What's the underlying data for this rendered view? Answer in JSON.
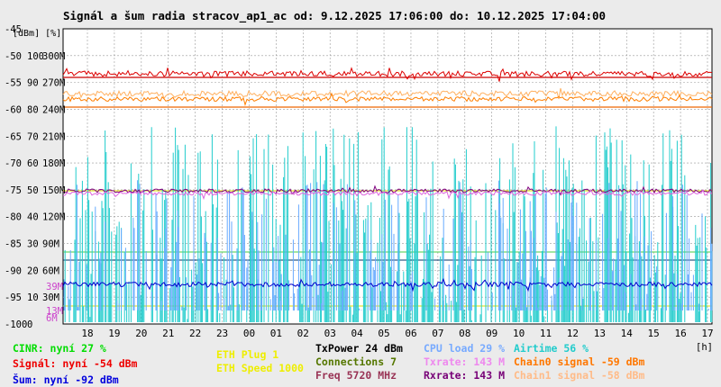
{
  "title": "Signál a šum radia stracov_ap1_ac od: 9.12.2025 17:06:00 do: 10.12.2025 17:04:00",
  "chart_data": {
    "type": "line",
    "axes": {
      "left_units_label": "[dBm] [%]",
      "dbm_ticks": [
        "-45",
        "-50",
        "-55",
        "-60",
        "-65",
        "-70",
        "-75",
        "-80",
        "-85",
        "-90",
        "-95",
        "-100"
      ],
      "percent_ticks": [
        "100",
        "90",
        "80",
        "70",
        "60",
        "50",
        "40",
        "30",
        "20",
        "10",
        "0"
      ],
      "rate_ticks": [
        "300M",
        "270M",
        "240M",
        "210M",
        "180M",
        "150M",
        "120M",
        "90M",
        "60M",
        "30M"
      ],
      "dbm_range": [
        -100,
        -45
      ],
      "percent_range": [
        0,
        110
      ],
      "extra_labels": [
        {
          "text": "39M",
          "color": "#cc44cc"
        },
        {
          "text": "13M",
          "color": "#cc44cc"
        },
        {
          "text": "6M",
          "color": "#cc44cc"
        }
      ],
      "x_ticks": [
        "18",
        "19",
        "20",
        "21",
        "22",
        "23",
        "00",
        "01",
        "02",
        "03",
        "04",
        "05",
        "06",
        "07",
        "08",
        "09",
        "10",
        "11",
        "12",
        "13",
        "14",
        "15",
        "16",
        "17"
      ],
      "x_unit": "[h]",
      "grid": true
    },
    "series": [
      {
        "name": "Signál",
        "color": "#dd0000",
        "unit": "dBm",
        "approx_level": -54
      },
      {
        "name": "Chain0 signal",
        "color": "#ff7f00",
        "unit": "dBm",
        "approx_level": -59
      },
      {
        "name": "Chain1 signal",
        "color": "#ffb060",
        "unit": "dBm",
        "approx_level": -58
      },
      {
        "name": "Rxrate",
        "color": "#800080",
        "unit": "Mbps",
        "approx_level": 143
      },
      {
        "name": "Txrate",
        "color": "#dd66dd",
        "unit": "Mbps",
        "approx_level": 143
      },
      {
        "name": "Šum",
        "color": "#0000cc",
        "unit": "dBm",
        "approx_level": -92
      },
      {
        "name": "CPU load",
        "color": "#66aaff",
        "unit": "%",
        "approx_level": 29
      },
      {
        "name": "Airtime",
        "color": "#22cccc",
        "unit": "%",
        "approx_level": 56
      },
      {
        "name": "CINR",
        "color": "#00cc00",
        "unit": "dB",
        "approx_level": 27
      }
    ]
  },
  "colors": {
    "cinr": "#00dd00",
    "signal": "#ee0000",
    "noise": "#0000dd",
    "eth": "#eeee00",
    "txpower": "#000000",
    "connections": "#557700",
    "freq": "#993355",
    "cpu": "#77aaff",
    "txrate": "#ee88ee",
    "rxrate": "#770077",
    "airtime": "#22cccc",
    "chain0": "#ff7700",
    "chain1": "#ffbb88"
  },
  "legend": {
    "cinr": "CINR: nyní 27 %",
    "signal": "Signál: nyní -54 dBm",
    "noise": "Šum: nyní -92 dBm",
    "eth_plug": "ETH Plug 1",
    "eth_speed": "ETH Speed 1000",
    "txpower": "TxPower 24 dBm",
    "connections": "Connections 7",
    "freq": "Freq 5720 MHz",
    "cpu": "CPU load 29 %",
    "txrate": "Txrate: 143 M",
    "rxrate": "Rxrate: 143 M",
    "airtime": "Airtime 56 %",
    "chain0": "Chain0 signal -59 dBm",
    "chain1": "Chain1 signal -58 dBm"
  }
}
